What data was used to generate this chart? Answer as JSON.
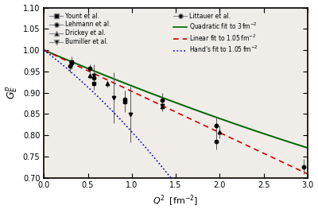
{
  "xlabel": "$Q^2$  [fm$^{-2}$]",
  "ylabel": "$G_E^p$",
  "xlim": [
    0,
    3
  ],
  "ylim": [
    0.7,
    1.1
  ],
  "yticks": [
    0.7,
    0.75,
    0.8,
    0.85,
    0.9,
    0.95,
    1.0,
    1.05,
    1.1
  ],
  "xticks": [
    0,
    0.5,
    1.0,
    1.5,
    2.0,
    2.5,
    3.0
  ],
  "bg_color": "#f0ede8",
  "yount": {
    "x": [
      0.31,
      0.57,
      0.92
    ],
    "y": [
      0.973,
      0.921,
      0.879
    ],
    "yerr": [
      0.012,
      0.015,
      0.025
    ],
    "label": "Yount et al.",
    "marker": "s"
  },
  "lehmann": {
    "x": [
      0.3,
      0.57
    ],
    "y": [
      0.963,
      0.935
    ],
    "yerr": [
      0.015,
      0.02
    ],
    "label": "Lehmann et al.",
    "marker": "o"
  },
  "drickey": {
    "x": [
      0.52,
      0.72,
      1.35,
      2.0
    ],
    "y": [
      0.94,
      0.921,
      0.868,
      0.807
    ],
    "yerr": [
      0.008,
      0.008,
      0.012,
      0.015
    ],
    "label": "Drickey et al.",
    "marker": "^"
  },
  "bumiller": {
    "x": [
      0.31,
      0.57,
      0.79,
      0.98,
      1.35
    ],
    "y": [
      0.966,
      0.941,
      0.888,
      0.849,
      0.869
    ],
    "yerr": [
      0.01,
      0.025,
      0.06,
      0.065,
      0.01
    ],
    "label": "Bumiller et al.",
    "marker": "v"
  },
  "littauer": {
    "x": [
      0.31,
      0.52,
      0.92,
      1.35,
      1.96,
      1.96,
      2.96
    ],
    "y": [
      0.971,
      0.957,
      0.884,
      0.882,
      0.823,
      0.786,
      0.726
    ],
    "yerr": [
      0.012,
      0.01,
      0.02,
      0.018,
      0.02,
      0.02,
      0.018
    ],
    "label": "Littauer et al.",
    "marker": "o"
  },
  "quad_fit": {
    "label": "Quadratic fit to 3 fm$^{-2}$",
    "color": "#006400",
    "linestyle": "-",
    "coeffs": [
      1.0,
      -0.088,
      0.0038
    ]
  },
  "linear_fit": {
    "label": "Linear fit to 1.05 fm$^{-2}$",
    "color": "#cc0000",
    "linestyle": "--",
    "coeffs": [
      1.0,
      -0.097
    ]
  },
  "hands_fit": {
    "label": "Hand's fit to 1.05 fm$^{-2}$",
    "color": "#0000cc",
    "linestyle": ":",
    "coeffs": [
      1.0,
      -0.156,
      -0.036
    ]
  }
}
